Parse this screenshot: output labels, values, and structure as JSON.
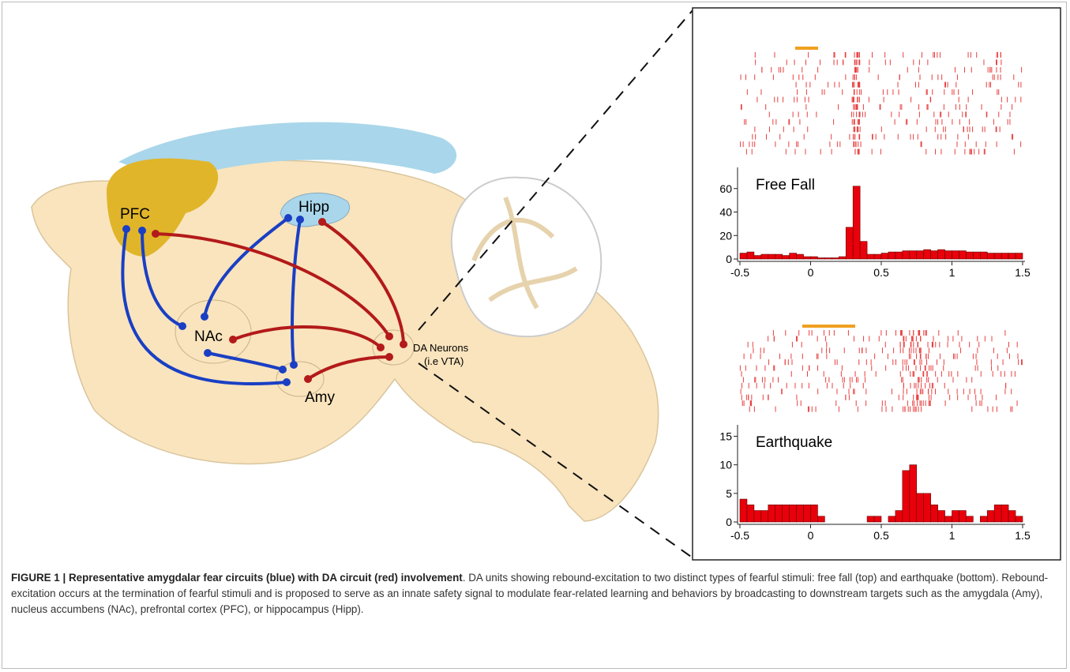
{
  "brain": {
    "labels": {
      "pfc": "PFC",
      "hipp": "Hipp",
      "nac": "NAc",
      "amy": "Amy",
      "da": "DA Neurons",
      "vta": "(i.e VTA)"
    }
  },
  "panels": [
    {
      "type": "histogram",
      "title": "Free Fall",
      "bins": [
        -0.5,
        -0.45,
        -0.4,
        -0.35,
        -0.3,
        -0.25,
        -0.2,
        -0.15,
        -0.1,
        -0.05,
        0,
        0.05,
        0.1,
        0.15,
        0.2,
        0.25,
        0.3,
        0.35,
        0.4,
        0.45,
        0.5,
        0.55,
        0.6,
        0.65,
        0.7,
        0.75,
        0.8,
        0.85,
        0.9,
        0.95,
        1,
        1.05,
        1.1,
        1.15,
        1.2,
        1.25,
        1.3,
        1.35,
        1.4,
        1.45,
        1.5
      ],
      "counts": [
        5,
        6,
        3,
        4,
        4,
        4,
        3,
        5,
        4,
        2,
        2,
        1,
        1,
        1,
        2,
        27,
        62,
        15,
        4,
        4,
        5,
        6,
        6,
        7,
        7,
        7,
        8,
        7,
        8,
        7,
        7,
        7,
        6,
        6,
        6,
        5,
        5,
        5,
        5,
        5
      ],
      "xlim": [
        -0.5,
        1.5
      ],
      "xticks": [
        -0.5,
        0,
        0.5,
        1,
        1.5
      ],
      "ylim": [
        0,
        78
      ],
      "yticks": [
        0,
        20,
        40,
        60
      ],
      "color": "#e8000b"
    },
    {
      "type": "histogram",
      "title": "Earthquake",
      "bins": [
        -0.5,
        -0.45,
        -0.4,
        -0.35,
        -0.3,
        -0.25,
        -0.2,
        -0.15,
        -0.1,
        -0.05,
        0,
        0.05,
        0.1,
        0.15,
        0.2,
        0.25,
        0.3,
        0.35,
        0.4,
        0.45,
        0.5,
        0.55,
        0.6,
        0.65,
        0.7,
        0.75,
        0.8,
        0.85,
        0.9,
        0.95,
        1,
        1.05,
        1.1,
        1.15,
        1.2,
        1.25,
        1.3,
        1.35,
        1.4,
        1.45,
        1.5
      ],
      "counts": [
        4,
        3,
        2,
        2,
        3,
        3,
        3,
        3,
        3,
        3,
        3,
        1,
        0,
        0,
        0,
        0,
        0,
        0,
        1,
        1,
        0,
        1,
        2,
        9,
        10,
        5,
        5,
        3,
        2,
        1,
        2,
        2,
        1,
        0,
        1,
        2,
        3,
        3,
        2,
        1
      ],
      "xlim": [
        -0.5,
        1.5
      ],
      "xticks": [
        -0.5,
        0,
        0.5,
        1,
        1.5
      ],
      "ylim": [
        0,
        17
      ],
      "yticks": [
        0,
        5,
        10,
        15
      ],
      "color": "#e8000b"
    }
  ],
  "caption": {
    "label": "FIGURE 1 | ",
    "title": "Representative amygdalar fear circuits (blue) with DA circuit (red) involvement",
    "text": ". DA units showing rebound-excitation to two distinct types of fearful stimuli: free fall (top) and earthquake (bottom). Rebound-excitation occurs at the termination of fearful stimuli and is proposed to serve as an innate safety signal to modulate fear-related learning and behaviors by broadcasting to downstream targets such as the amygdala (Amy), nucleus accumbens (NAc), prefrontal cortex (PFC), or hippocampus (Hipp)."
  }
}
